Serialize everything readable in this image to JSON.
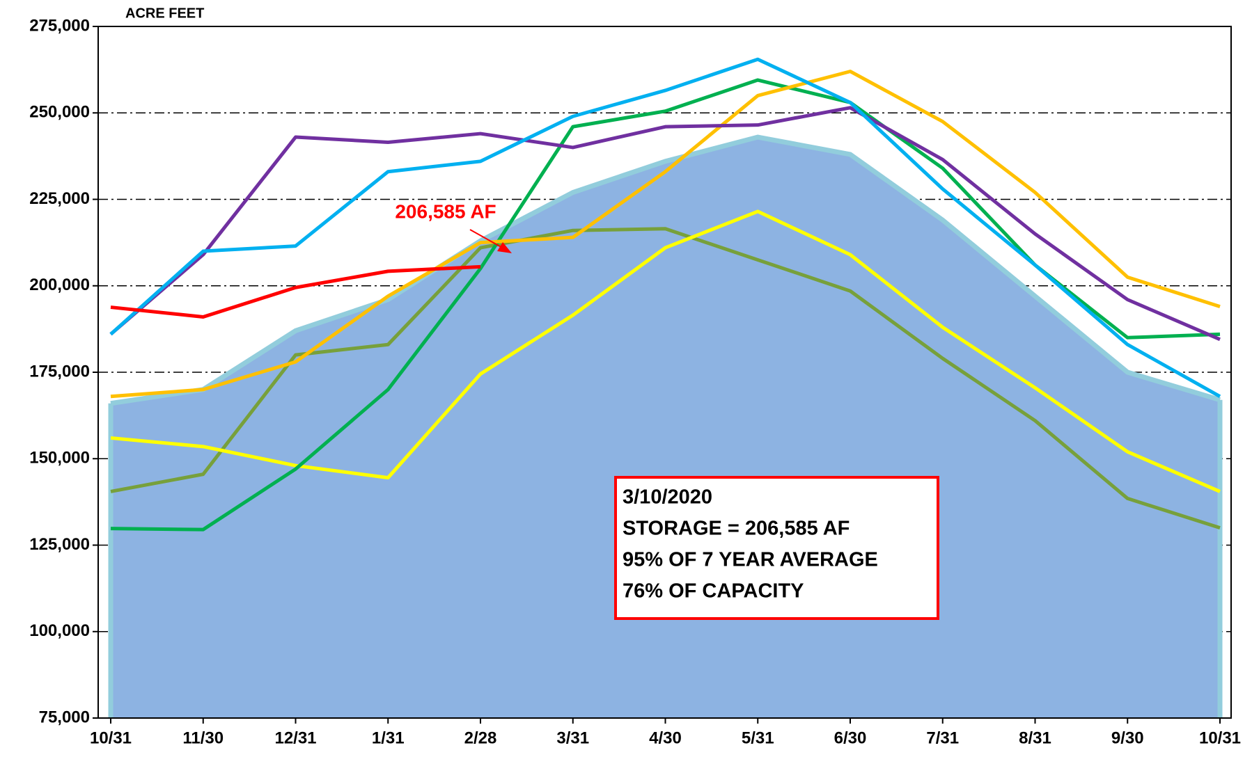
{
  "chart_data": {
    "type": "line",
    "y_label": "ACRE FEET",
    "categories": [
      "10/31",
      "11/30",
      "12/31",
      "1/31",
      "2/28",
      "3/31",
      "4/30",
      "5/31",
      "6/30",
      "7/31",
      "8/31",
      "9/30",
      "10/31"
    ],
    "ylim": [
      75000,
      275000
    ],
    "yticks": [
      {
        "value": 75000,
        "label": "75,000"
      },
      {
        "value": 100000,
        "label": "100,000"
      },
      {
        "value": 125000,
        "label": "125,000"
      },
      {
        "value": 150000,
        "label": "150,000"
      },
      {
        "value": 175000,
        "label": "175,000"
      },
      {
        "value": 200000,
        "label": "200,000"
      },
      {
        "value": 225000,
        "label": "225,000"
      },
      {
        "value": 250000,
        "label": "250,000"
      },
      {
        "value": 275000,
        "label": "275,000"
      }
    ],
    "grid": true,
    "area": {
      "color": "#8db3e2",
      "edge_color": "#92cddc",
      "values": [
        166000,
        170000,
        187000,
        196000,
        213000,
        227000,
        236000,
        243000,
        238000,
        219000,
        197000,
        175000,
        167000
      ]
    },
    "series": [
      {
        "color": "#77a03b",
        "values": [
          140500,
          145500,
          180000,
          183000,
          211000,
          216000,
          216500,
          207500,
          198500,
          179000,
          161000,
          138500,
          130000
        ]
      },
      {
        "color": "#ffff00",
        "values": [
          156000,
          153500,
          148000,
          144500,
          174500,
          191500,
          211000,
          221500,
          209000,
          188000,
          170500,
          152000,
          140500
        ]
      },
      {
        "color": "#00b050",
        "values": [
          129800,
          129500,
          147000,
          170000,
          205000,
          246000,
          250500,
          259500,
          253000,
          234000,
          206000,
          185000,
          186000
        ]
      },
      {
        "color": "#ffc000",
        "values": [
          168000,
          170000,
          178000,
          197000,
          212500,
          214000,
          233000,
          255000,
          262000,
          247500,
          227000,
          202500,
          194000
        ]
      },
      {
        "color": "#7030a0",
        "values": [
          186000,
          209000,
          243000,
          241500,
          244000,
          240000,
          246000,
          246500,
          251500,
          236500,
          215000,
          196000,
          184500
        ]
      },
      {
        "color": "#00b0f0",
        "values": [
          186000,
          210000,
          211500,
          233000,
          236000,
          249000,
          256500,
          265500,
          253000,
          228000,
          206000,
          183000,
          168000
        ]
      },
      {
        "color": "#ff0000",
        "values": [
          193800,
          191000,
          199500,
          204200,
          205500,
          null,
          null,
          null,
          null,
          null,
          null,
          null,
          null
        ]
      }
    ],
    "annotation": {
      "text": "206,585 AF",
      "color": "#ff0000"
    },
    "info_box": {
      "border_color": "#ff0000",
      "lines": [
        "3/10/2020",
        "STORAGE = 206,585 AF",
        "95% OF 7 YEAR AVERAGE",
        "76% OF CAPACITY"
      ]
    }
  }
}
